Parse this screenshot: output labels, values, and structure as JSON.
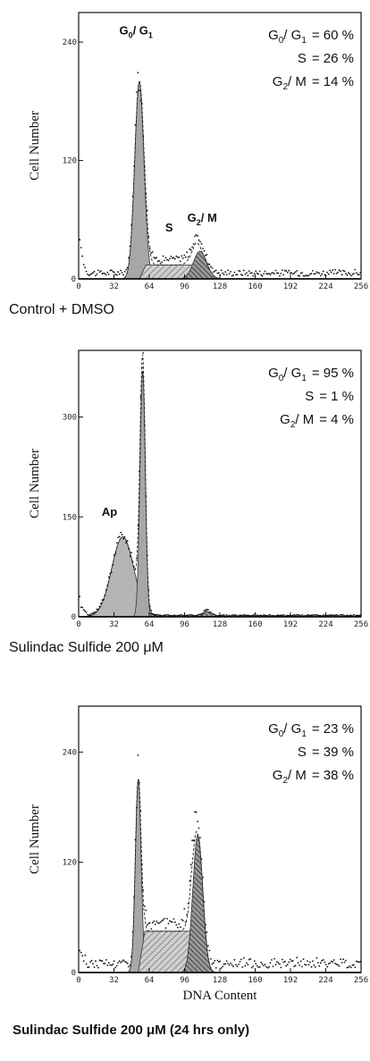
{
  "chart_data": [
    {
      "type": "area",
      "ylabel": "Cell Number",
      "xlabel": "",
      "caption": "Control + DMSO",
      "xlim": [
        0,
        256
      ],
      "ylim": [
        0,
        270
      ],
      "x_ticks": [
        0,
        32,
        64,
        96,
        128,
        160,
        192,
        224,
        256
      ],
      "y_ticks": [
        120,
        240
      ],
      "stats": [
        {
          "label_main": "G",
          "sub1": "0",
          "mid": "/ G",
          "sub2": "1",
          "value": "= 60 %"
        },
        {
          "label_main": "S",
          "sub1": "",
          "mid": "",
          "sub2": "",
          "value": "= 26 %"
        },
        {
          "label_main": "G",
          "sub1": "2",
          "mid": "/ M",
          "sub2": "",
          "value": "= 14 %"
        }
      ],
      "peak_labels": [
        {
          "main": "G",
          "sub1": "0",
          "mid": "/ G",
          "sub2": "1",
          "x": 52,
          "y": 248
        },
        {
          "main": "S",
          "sub1": "",
          "mid": "",
          "sub2": "",
          "x": 82,
          "y": 48
        },
        {
          "main": "G",
          "sub1": "2",
          "mid": "/ M",
          "sub2": "",
          "x": 112,
          "y": 58
        }
      ],
      "components": [
        {
          "name": "G0/G1",
          "mu": 55,
          "sigma": 4.2,
          "amp": 200
        },
        {
          "name": "S",
          "kind": "plateau",
          "x0": 55,
          "x1": 112,
          "h": 14
        },
        {
          "name": "G2/M",
          "mu": 110,
          "sigma": 6,
          "amp": 28
        }
      ],
      "noise": {
        "baseline": 6,
        "edge": 30
      }
    },
    {
      "type": "area",
      "ylabel": "Cell Number",
      "xlabel": "",
      "caption": "Sulindac Sulfide 200 μM",
      "xlim": [
        0,
        256
      ],
      "ylim": [
        0,
        400
      ],
      "x_ticks": [
        0,
        32,
        64,
        96,
        128,
        160,
        192,
        224,
        256
      ],
      "y_ticks": [
        150,
        300
      ],
      "stats": [
        {
          "label_main": "G",
          "sub1": "0",
          "mid": "/ G",
          "sub2": "1",
          "value": "= 95 %"
        },
        {
          "label_main": "S",
          "sub1": "",
          "mid": "",
          "sub2": "",
          "value": "= 1 %"
        },
        {
          "label_main": "G",
          "sub1": "2",
          "mid": "/ M",
          "sub2": "",
          "value": "= 4 %"
        }
      ],
      "peak_labels": [
        {
          "main": "Ap",
          "sub1": "",
          "mid": "",
          "sub2": "",
          "x": 28,
          "y": 152
        }
      ],
      "components": [
        {
          "name": "Ap",
          "mu": 40,
          "sigma": 10,
          "amp": 120
        },
        {
          "name": "G0/G1",
          "mu": 58,
          "sigma": 2.4,
          "amp": 370
        },
        {
          "name": "G2/M",
          "mu": 116,
          "sigma": 3,
          "amp": 8
        }
      ],
      "noise": {
        "baseline": 2,
        "edge": 25
      }
    },
    {
      "type": "area",
      "ylabel": "Cell Number",
      "xlabel": "DNA Content",
      "caption": "Sulindac Sulfide 200 μM (24 hrs only)",
      "xlim": [
        0,
        256
      ],
      "ylim": [
        0,
        290
      ],
      "x_ticks": [
        0,
        32,
        64,
        96,
        128,
        160,
        192,
        224,
        256
      ],
      "y_ticks": [
        120,
        240
      ],
      "stats": [
        {
          "label_main": "G",
          "sub1": "0",
          "mid": "/ G",
          "sub2": "1",
          "value": "= 23 %"
        },
        {
          "label_main": "S",
          "sub1": "",
          "mid": "",
          "sub2": "",
          "value": "= 39 %"
        },
        {
          "label_main": "G",
          "sub1": "2",
          "mid": "/ M",
          "sub2": "",
          "value": "= 38 %"
        }
      ],
      "peak_labels": [],
      "components": [
        {
          "name": "G0/G1",
          "mu": 54,
          "sigma": 2.6,
          "amp": 210
        },
        {
          "name": "S",
          "kind": "plateau",
          "x0": 54,
          "x1": 108,
          "h": 45
        },
        {
          "name": "G2/M",
          "mu": 108,
          "sigma": 4.5,
          "amp": 150
        }
      ],
      "noise": {
        "baseline": 10,
        "edge": 15
      }
    }
  ]
}
